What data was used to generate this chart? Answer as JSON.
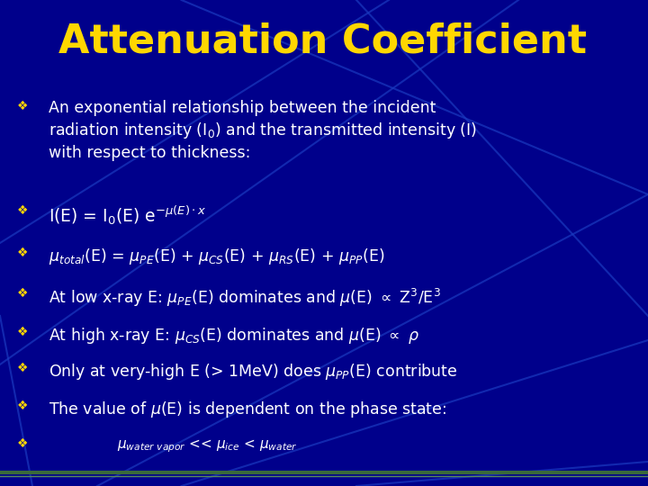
{
  "title": "Attenuation Coefficient",
  "title_color": "#FFD700",
  "title_fontsize": 32,
  "bg_color": "#00008B",
  "text_color": "#FFFFFF",
  "bullet_color": "#FFD700",
  "bullet_char": "❖",
  "fig_width": 7.2,
  "fig_height": 5.4,
  "dpi": 100,
  "line_color": "#1a3abf",
  "bottom_line_color1": "#3a6a3a",
  "bottom_line_color2": "#5a8a5a",
  "diag_lines": [
    [
      [
        0.15,
        1.0
      ],
      [
        0.0,
        0.6
      ]
    ],
    [
      [
        0.28,
        1.0
      ],
      [
        0.0,
        0.3
      ]
    ],
    [
      [
        0.55,
        1.0
      ],
      [
        0.0,
        0.05
      ]
    ],
    [
      [
        0.55,
        1.0
      ],
      [
        1.0,
        0.35
      ]
    ],
    [
      [
        0.28,
        1.0
      ],
      [
        1.0,
        0.6
      ]
    ],
    [
      [
        0.6,
        0.0
      ],
      [
        1.0,
        0.5
      ]
    ],
    [
      [
        0.8,
        0.0
      ],
      [
        1.0,
        0.25
      ]
    ],
    [
      [
        0.0,
        0.05
      ],
      [
        0.35,
        0.0
      ]
    ]
  ]
}
